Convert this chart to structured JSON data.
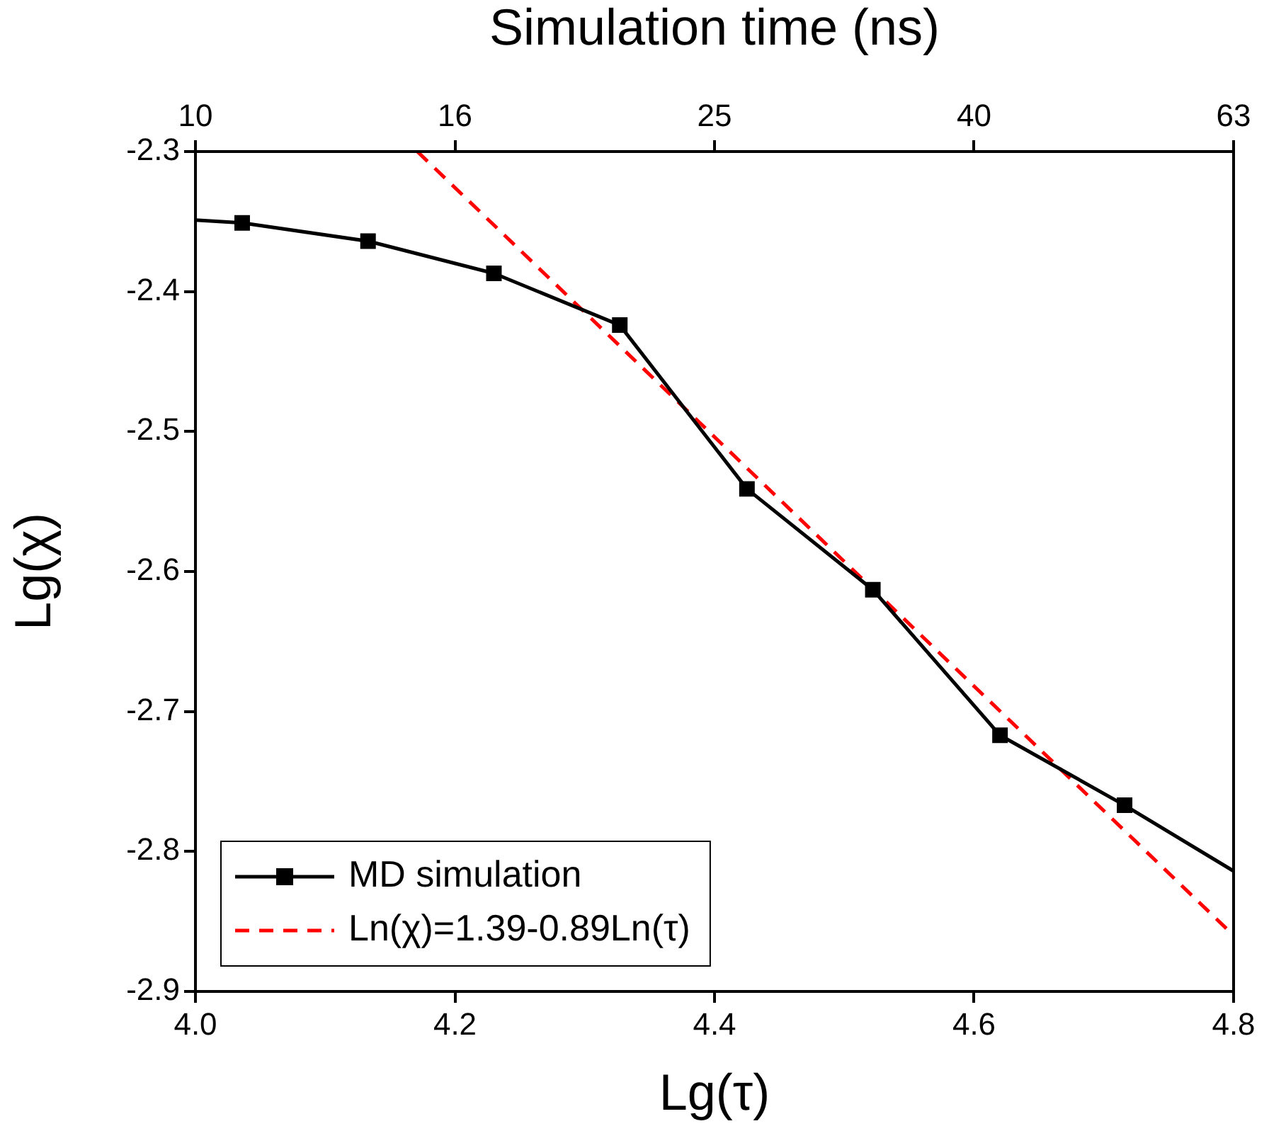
{
  "chart_data": {
    "type": "line",
    "xlabel": "Lg(τ)",
    "ylabel": "Lg(χ)",
    "x2label": "Simulation time (ns)",
    "xlim": [
      4.0,
      4.8
    ],
    "xticks": [
      {
        "value": 4.0,
        "label": "4.0"
      },
      4.2,
      4.4,
      4.6,
      4.8
    ],
    "ylim": [
      -2.9,
      -2.3
    ],
    "yticks": [
      -2.9,
      -2.8,
      -2.7,
      -2.6,
      -2.5,
      -2.4,
      -2.3
    ],
    "x2lim": [
      10,
      63.1
    ],
    "x2ticks": [
      10,
      {
        "value": 15.85,
        "label": "16"
      },
      {
        "value": 25.12,
        "label": "25"
      },
      {
        "value": 39.81,
        "label": "40"
      },
      {
        "value": 63.1,
        "label": "63"
      }
    ],
    "log": "x2",
    "grid": false,
    "legend": "bottom left",
    "series": [
      {
        "name": "MD simulation",
        "color": "#000000",
        "marker": "square",
        "line_style": "solid",
        "x": [
          4.0,
          4.036,
          4.133,
          4.23,
          4.327,
          4.425,
          4.522,
          4.62,
          4.716,
          4.8
        ],
        "values": [
          -2.349,
          -2.351,
          -2.364,
          -2.387,
          -2.424,
          -2.541,
          -2.613,
          -2.717,
          -2.767,
          -2.814
        ]
      },
      {
        "name": "Ln(χ)=1.39-0.89Ln(τ)",
        "color": "#ff0000",
        "marker": "none",
        "line_style": "dashed",
        "x": [
          4.171,
          4.8
        ],
        "values": [
          -2.3,
          -2.86
        ]
      }
    ]
  }
}
